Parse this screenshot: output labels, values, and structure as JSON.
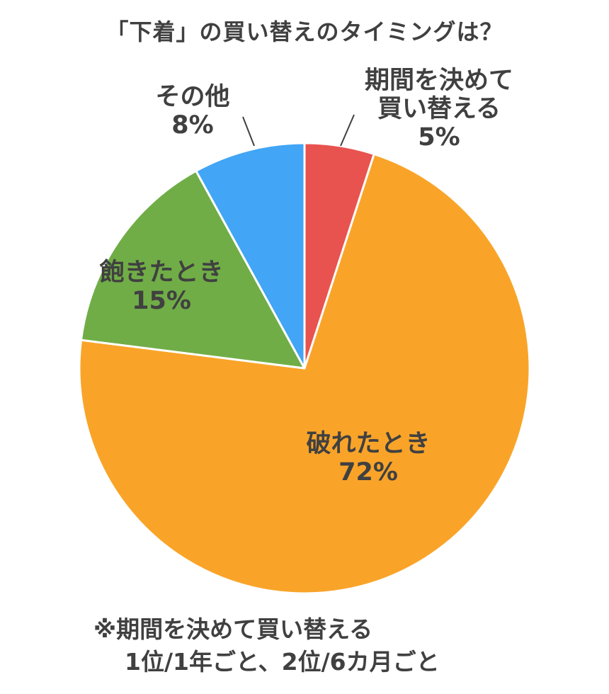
{
  "chart_data": {
    "type": "pie",
    "title": "「下着」の買い替えのタイミングは？",
    "slices": [
      {
        "label_lines": [
          "期間を決めて",
          "買い替える"
        ],
        "value": 5,
        "value_label": "5%",
        "color": "#e8534f"
      },
      {
        "label_lines": [
          "破れたとき"
        ],
        "value": 72,
        "value_label": "72%",
        "color": "#f9a429"
      },
      {
        "label_lines": [
          "飽きたとき"
        ],
        "value": 15,
        "value_label": "15%",
        "color": "#70ad47"
      },
      {
        "label_lines": [
          "その他"
        ],
        "value": 8,
        "value_label": "8%",
        "color": "#42a5f5"
      }
    ],
    "note_lines": [
      "※期間を決めて買い替える",
      "1位/1年ごと、2位/6カ月ごと"
    ]
  }
}
